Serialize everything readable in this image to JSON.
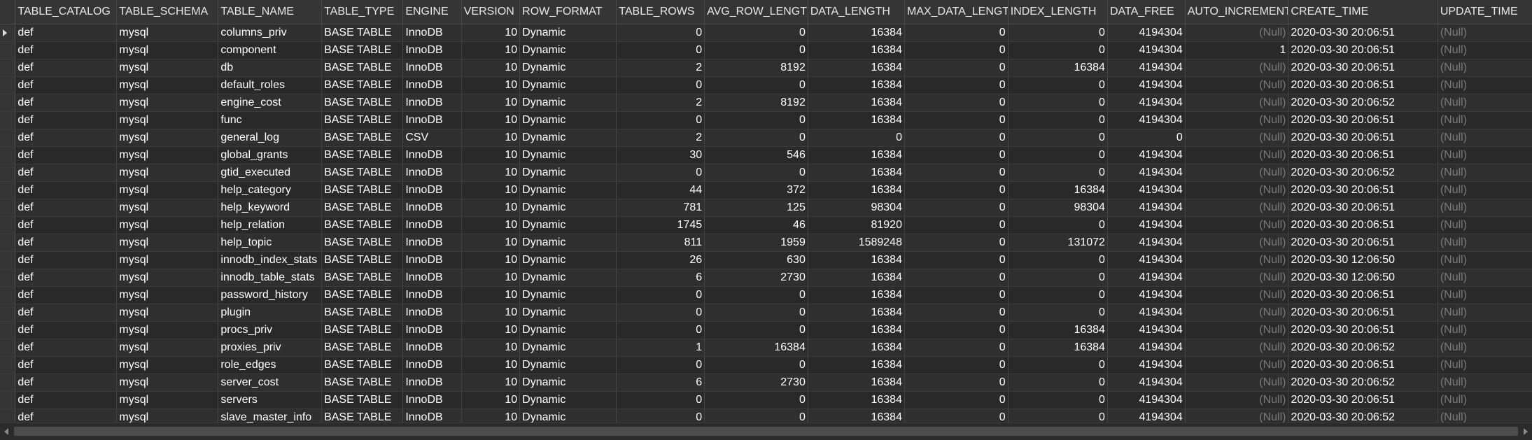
{
  "columns": [
    {
      "key": "table_catalog",
      "label": "TABLE_CATALOG"
    },
    {
      "key": "table_schema",
      "label": "TABLE_SCHEMA"
    },
    {
      "key": "table_name",
      "label": "TABLE_NAME"
    },
    {
      "key": "table_type",
      "label": "TABLE_TYPE"
    },
    {
      "key": "engine",
      "label": "ENGINE"
    },
    {
      "key": "version",
      "label": "VERSION"
    },
    {
      "key": "row_format",
      "label": "ROW_FORMAT"
    },
    {
      "key": "table_rows",
      "label": "TABLE_ROWS"
    },
    {
      "key": "avg_row_length",
      "label": "AVG_ROW_LENGTH"
    },
    {
      "key": "data_length",
      "label": "DATA_LENGTH"
    },
    {
      "key": "max_data_length",
      "label": "MAX_DATA_LENGTH"
    },
    {
      "key": "index_length",
      "label": "INDEX_LENGTH"
    },
    {
      "key": "data_free",
      "label": "DATA_FREE"
    },
    {
      "key": "auto_increment",
      "label": "AUTO_INCREMENT"
    },
    {
      "key": "create_time",
      "label": "CREATE_TIME"
    },
    {
      "key": "update_time",
      "label": "UPDATE_TIME"
    }
  ],
  "null_text": "(Null)",
  "rows": [
    [
      "def",
      "mysql",
      "columns_priv",
      "BASE TABLE",
      "InnoDB",
      "10",
      "Dynamic",
      "0",
      "0",
      "16384",
      "0",
      "0",
      "4194304",
      null,
      "2020-03-30 20:06:51",
      null
    ],
    [
      "def",
      "mysql",
      "component",
      "BASE TABLE",
      "InnoDB",
      "10",
      "Dynamic",
      "0",
      "0",
      "16384",
      "0",
      "0",
      "4194304",
      "1",
      "2020-03-30 20:06:51",
      null
    ],
    [
      "def",
      "mysql",
      "db",
      "BASE TABLE",
      "InnoDB",
      "10",
      "Dynamic",
      "2",
      "8192",
      "16384",
      "0",
      "16384",
      "4194304",
      null,
      "2020-03-30 20:06:51",
      null
    ],
    [
      "def",
      "mysql",
      "default_roles",
      "BASE TABLE",
      "InnoDB",
      "10",
      "Dynamic",
      "0",
      "0",
      "16384",
      "0",
      "0",
      "4194304",
      null,
      "2020-03-30 20:06:51",
      null
    ],
    [
      "def",
      "mysql",
      "engine_cost",
      "BASE TABLE",
      "InnoDB",
      "10",
      "Dynamic",
      "2",
      "8192",
      "16384",
      "0",
      "0",
      "4194304",
      null,
      "2020-03-30 20:06:52",
      null
    ],
    [
      "def",
      "mysql",
      "func",
      "BASE TABLE",
      "InnoDB",
      "10",
      "Dynamic",
      "0",
      "0",
      "16384",
      "0",
      "0",
      "4194304",
      null,
      "2020-03-30 20:06:51",
      null
    ],
    [
      "def",
      "mysql",
      "general_log",
      "BASE TABLE",
      "CSV",
      "10",
      "Dynamic",
      "2",
      "0",
      "0",
      "0",
      "0",
      "0",
      null,
      "2020-03-30 20:06:51",
      null
    ],
    [
      "def",
      "mysql",
      "global_grants",
      "BASE TABLE",
      "InnoDB",
      "10",
      "Dynamic",
      "30",
      "546",
      "16384",
      "0",
      "0",
      "4194304",
      null,
      "2020-03-30 20:06:51",
      null
    ],
    [
      "def",
      "mysql",
      "gtid_executed",
      "BASE TABLE",
      "InnoDB",
      "10",
      "Dynamic",
      "0",
      "0",
      "16384",
      "0",
      "0",
      "4194304",
      null,
      "2020-03-30 20:06:52",
      null
    ],
    [
      "def",
      "mysql",
      "help_category",
      "BASE TABLE",
      "InnoDB",
      "10",
      "Dynamic",
      "44",
      "372",
      "16384",
      "0",
      "16384",
      "4194304",
      null,
      "2020-03-30 20:06:51",
      null
    ],
    [
      "def",
      "mysql",
      "help_keyword",
      "BASE TABLE",
      "InnoDB",
      "10",
      "Dynamic",
      "781",
      "125",
      "98304",
      "0",
      "98304",
      "4194304",
      null,
      "2020-03-30 20:06:51",
      null
    ],
    [
      "def",
      "mysql",
      "help_relation",
      "BASE TABLE",
      "InnoDB",
      "10",
      "Dynamic",
      "1745",
      "46",
      "81920",
      "0",
      "0",
      "4194304",
      null,
      "2020-03-30 20:06:51",
      null
    ],
    [
      "def",
      "mysql",
      "help_topic",
      "BASE TABLE",
      "InnoDB",
      "10",
      "Dynamic",
      "811",
      "1959",
      "1589248",
      "0",
      "131072",
      "4194304",
      null,
      "2020-03-30 20:06:51",
      null
    ],
    [
      "def",
      "mysql",
      "innodb_index_stats",
      "BASE TABLE",
      "InnoDB",
      "10",
      "Dynamic",
      "26",
      "630",
      "16384",
      "0",
      "0",
      "4194304",
      null,
      "2020-03-30 12:06:50",
      null
    ],
    [
      "def",
      "mysql",
      "innodb_table_stats",
      "BASE TABLE",
      "InnoDB",
      "10",
      "Dynamic",
      "6",
      "2730",
      "16384",
      "0",
      "0",
      "4194304",
      null,
      "2020-03-30 12:06:50",
      null
    ],
    [
      "def",
      "mysql",
      "password_history",
      "BASE TABLE",
      "InnoDB",
      "10",
      "Dynamic",
      "0",
      "0",
      "16384",
      "0",
      "0",
      "4194304",
      null,
      "2020-03-30 20:06:51",
      null
    ],
    [
      "def",
      "mysql",
      "plugin",
      "BASE TABLE",
      "InnoDB",
      "10",
      "Dynamic",
      "0",
      "0",
      "16384",
      "0",
      "0",
      "4194304",
      null,
      "2020-03-30 20:06:51",
      null
    ],
    [
      "def",
      "mysql",
      "procs_priv",
      "BASE TABLE",
      "InnoDB",
      "10",
      "Dynamic",
      "0",
      "0",
      "16384",
      "0",
      "16384",
      "4194304",
      null,
      "2020-03-30 20:06:51",
      null
    ],
    [
      "def",
      "mysql",
      "proxies_priv",
      "BASE TABLE",
      "InnoDB",
      "10",
      "Dynamic",
      "1",
      "16384",
      "16384",
      "0",
      "16384",
      "4194304",
      null,
      "2020-03-30 20:06:52",
      null
    ],
    [
      "def",
      "mysql",
      "role_edges",
      "BASE TABLE",
      "InnoDB",
      "10",
      "Dynamic",
      "0",
      "0",
      "16384",
      "0",
      "0",
      "4194304",
      null,
      "2020-03-30 20:06:51",
      null
    ],
    [
      "def",
      "mysql",
      "server_cost",
      "BASE TABLE",
      "InnoDB",
      "10",
      "Dynamic",
      "6",
      "2730",
      "16384",
      "0",
      "0",
      "4194304",
      null,
      "2020-03-30 20:06:52",
      null
    ],
    [
      "def",
      "mysql",
      "servers",
      "BASE TABLE",
      "InnoDB",
      "10",
      "Dynamic",
      "0",
      "0",
      "16384",
      "0",
      "0",
      "4194304",
      null,
      "2020-03-30 20:06:51",
      null
    ],
    [
      "def",
      "mysql",
      "slave_master_info",
      "BASE TABLE",
      "InnoDB",
      "10",
      "Dynamic",
      "0",
      "0",
      "16384",
      "0",
      "0",
      "4194304",
      null,
      "2020-03-30 20:06:52",
      null
    ]
  ],
  "current_row": 0,
  "colors": {
    "background": "#2b2b2b",
    "header_bg": "#353535",
    "null_text": "#7a7a7a",
    "text": "#ffffff"
  },
  "icons": {
    "current_row_marker": "right-triangle-icon",
    "scroll_left": "arrow-left-icon",
    "scroll_right": "arrow-right-icon"
  }
}
